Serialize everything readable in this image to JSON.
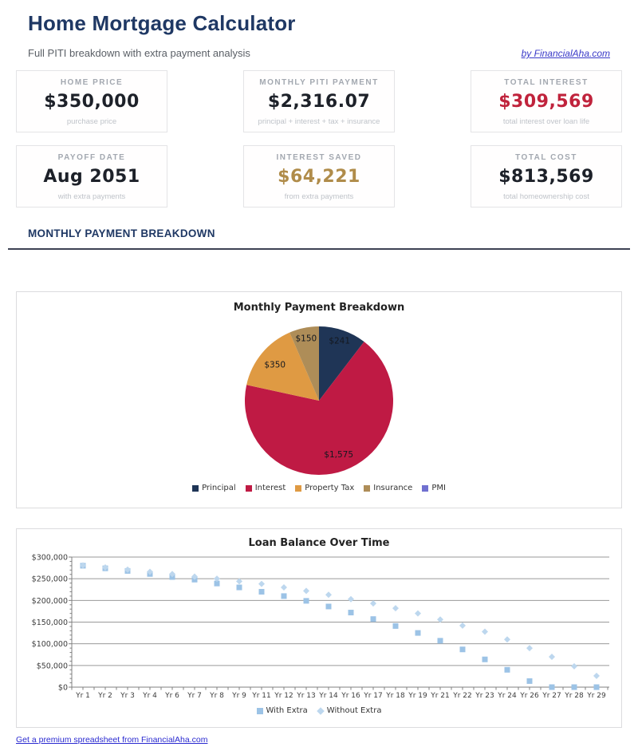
{
  "header": {
    "title": "Home Mortgage Calculator",
    "subtitle": "Full PITI breakdown with extra payment analysis",
    "byline": "by FinancialAha.com"
  },
  "stats": [
    {
      "label": "HOME PRICE",
      "value": "$350,000",
      "sub": "purchase price",
      "color": "#1d2129"
    },
    {
      "label": "MONTHLY PITI PAYMENT",
      "value": "$2,316.07",
      "sub": "principal + interest + tax + insurance",
      "color": "#1d2129"
    },
    {
      "label": "TOTAL INTEREST",
      "value": "$309,569",
      "sub": "total interest over loan life",
      "color": "#c0233c"
    },
    {
      "label": "PAYOFF DATE",
      "value": "Aug 2051",
      "sub": "with extra payments",
      "color": "#1d2129"
    },
    {
      "label": "INTEREST SAVED",
      "value": "$64,221",
      "sub": "from extra payments",
      "color": "#b08c4a"
    },
    {
      "label": "TOTAL COST",
      "value": "$813,569",
      "sub": "total homeownership cost",
      "color": "#1d2129"
    }
  ],
  "section": {
    "title": "MONTHLY PAYMENT BREAKDOWN"
  },
  "footer": {
    "link_label": "Get a premium spreadsheet from FinancialAha.com"
  },
  "chart_data": [
    {
      "type": "pie",
      "title": "Monthly Payment Breakdown",
      "labels": [
        "Principal",
        "Interest",
        "Property Tax",
        "Insurance",
        "PMI"
      ],
      "values": [
        241,
        1575,
        350,
        150,
        0
      ],
      "data_labels": [
        "$241",
        "$1,575",
        "$350",
        "$150",
        ""
      ],
      "colors": [
        "#1f3556",
        "#bf1a44",
        "#df9a43",
        "#ae8d58",
        "#7070d0"
      ],
      "legend_position": "bottom"
    },
    {
      "type": "scatter",
      "title": "Loan Balance Over Time",
      "categories": [
        "Yr 1",
        "Yr 2",
        "Yr 3",
        "Yr 4",
        "Yr 6",
        "Yr 7",
        "Yr 8",
        "Yr 9",
        "Yr 11",
        "Yr 12",
        "Yr 13",
        "Yr 14",
        "Yr 16",
        "Yr 17",
        "Yr 18",
        "Yr 19",
        "Yr 21",
        "Yr 22",
        "Yr 23",
        "Yr 24",
        "Yr 26",
        "Yr 27",
        "Yr 28",
        "Yr 29"
      ],
      "series": [
        {
          "name": "With Extra",
          "marker": "square",
          "color": "#9cc3e6",
          "values": [
            280000,
            274000,
            268000,
            261000,
            254000,
            248000,
            239000,
            230000,
            220000,
            210000,
            199000,
            186000,
            172000,
            157000,
            141000,
            125000,
            107000,
            87000,
            64000,
            40000,
            14000,
            0,
            0,
            0
          ]
        },
        {
          "name": "Without Extra",
          "marker": "diamond",
          "color": "#bdd7ee",
          "values": [
            281000,
            276000,
            271000,
            266000,
            261000,
            255000,
            250000,
            244000,
            238000,
            230000,
            222000,
            213000,
            203000,
            193000,
            182000,
            170000,
            156000,
            142000,
            128000,
            110000,
            90000,
            70000,
            48000,
            26000
          ]
        }
      ],
      "ylim": [
        0,
        300000
      ],
      "ytick_step": 50000,
      "ytick_labels": [
        "$0",
        "$50,000",
        "$100,000",
        "$150,000",
        "$200,000",
        "$250,000",
        "$300,000"
      ],
      "grid": true,
      "legend_position": "bottom"
    }
  ]
}
